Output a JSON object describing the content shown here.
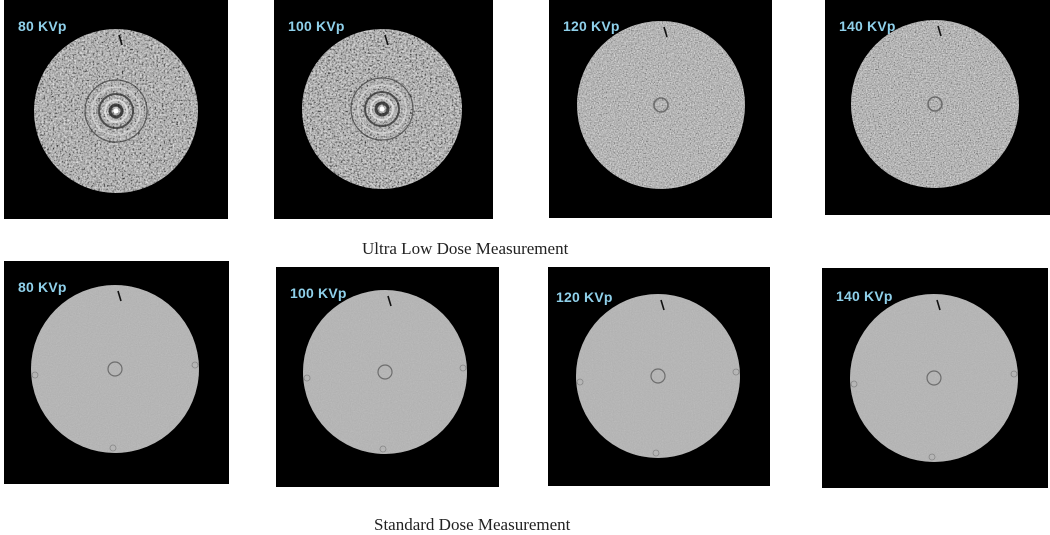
{
  "figure": {
    "rows": [
      {
        "caption": "Ultra Low Dose Measurement",
        "noise": "high",
        "panels": [
          {
            "label": "80 KVp"
          },
          {
            "label": "100 KVp"
          },
          {
            "label": "120 KVp"
          },
          {
            "label": "140 KVp"
          }
        ]
      },
      {
        "caption": "Standard Dose Measurement",
        "noise": "low",
        "panels": [
          {
            "label": "80 KVp"
          },
          {
            "label": "100 KVp"
          },
          {
            "label": "120 KVp"
          },
          {
            "label": "140 KVp"
          }
        ]
      }
    ]
  }
}
